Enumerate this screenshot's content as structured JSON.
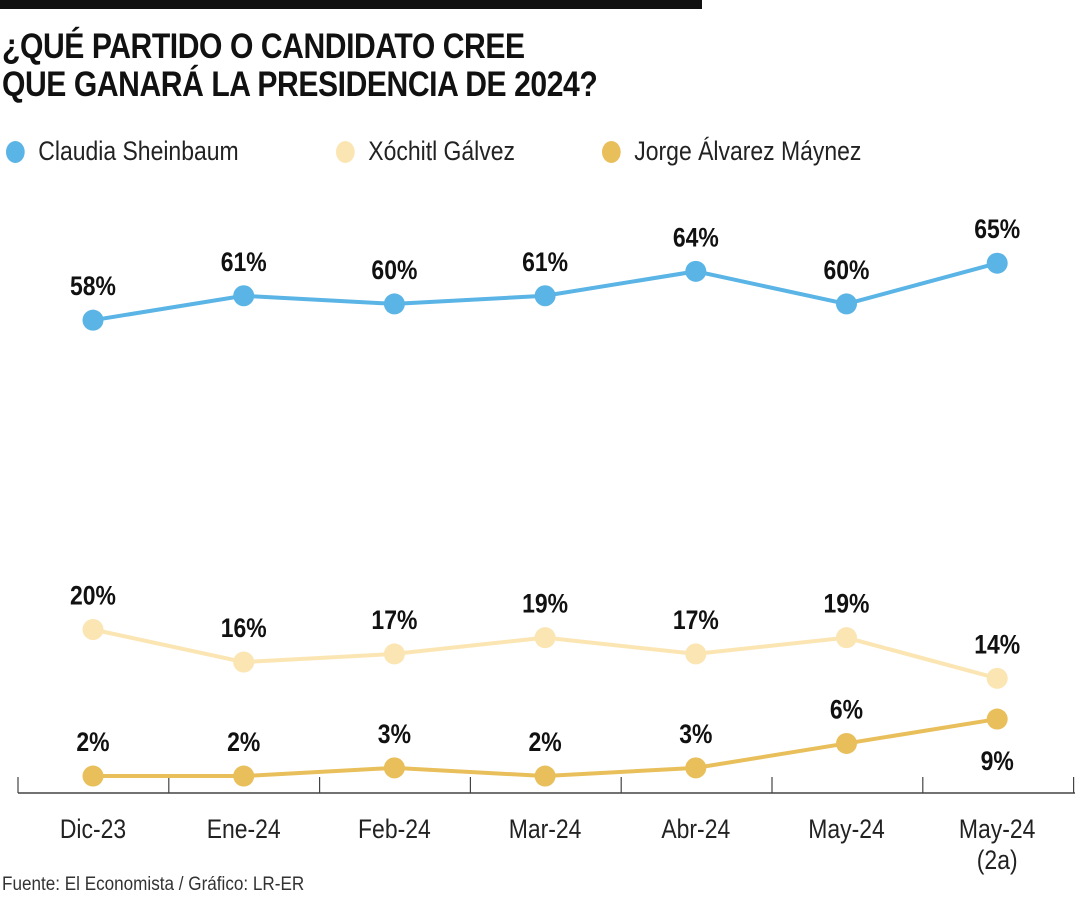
{
  "title_lines": [
    "¿QUÉ PARTIDO O CANDIDATO CREE",
    "QUE GANARÁ LA PRESIDENCIA DE 2024?"
  ],
  "source": "Fuente: El Economista / Gráfico: LR-ER",
  "chart_data": {
    "type": "line",
    "title": "¿QUÉ PARTIDO O CANDIDATO CREE QUE GANARÁ LA PRESIDENCIA DE 2024?",
    "categories": [
      [
        "Dic-23"
      ],
      [
        "Ene-24"
      ],
      [
        "Feb-24"
      ],
      [
        "Mar-24"
      ],
      [
        "Abr-24"
      ],
      [
        "May-24"
      ],
      [
        "May-24",
        "(2a)"
      ]
    ],
    "unit": "%",
    "legend_position": "top-left",
    "grid": false,
    "series": [
      {
        "name": "Claudia Sheinbaum",
        "color": "#5ab4e5",
        "values": [
          58,
          61,
          60,
          61,
          64,
          60,
          65
        ]
      },
      {
        "name": "Xóchitl Gálvez",
        "color": "#fbe5b3",
        "values": [
          20,
          16,
          17,
          19,
          17,
          19,
          14
        ]
      },
      {
        "name": "Jorge Álvarez Máynez",
        "color": "#e8bf5a",
        "values": [
          2,
          2,
          3,
          2,
          3,
          6,
          9
        ]
      }
    ]
  }
}
